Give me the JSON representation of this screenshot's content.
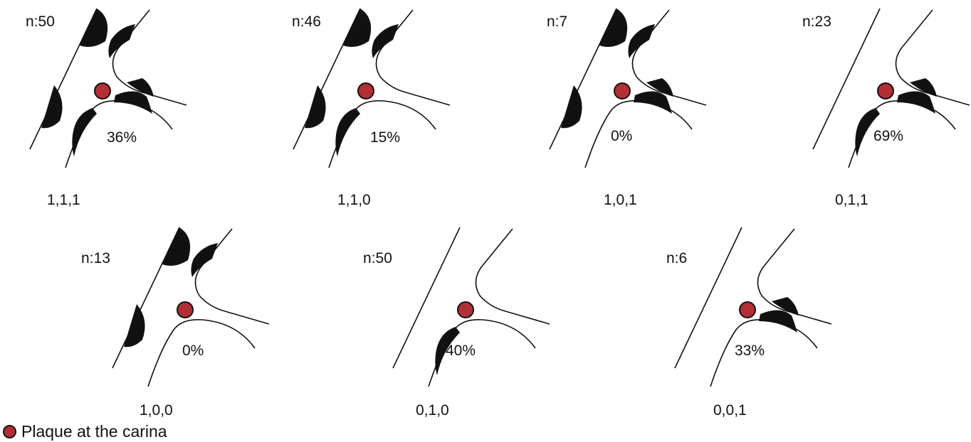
{
  "colors": {
    "plaque": "#b22f35",
    "ink": "#111111"
  },
  "legend": {
    "icon": "plaque-dot-icon",
    "label": "Plaque at the carina"
  },
  "panels": [
    {
      "n": "n:50",
      "percent": "36%",
      "code": "1,1,1",
      "plaques": {
        "side_wall": true,
        "flow_divider": true,
        "outer_branch": true
      }
    },
    {
      "n": "n:46",
      "percent": "15%",
      "code": "1,1,0",
      "plaques": {
        "side_wall": true,
        "flow_divider": true,
        "outer_branch": false
      }
    },
    {
      "n": "n:7",
      "percent": "0%",
      "code": "1,0,1",
      "plaques": {
        "side_wall": true,
        "flow_divider": false,
        "outer_branch": true
      }
    },
    {
      "n": "n:23",
      "percent": "69%",
      "code": "0,1,1",
      "plaques": {
        "side_wall": false,
        "flow_divider": true,
        "outer_branch": true
      }
    },
    {
      "n": "n:13",
      "percent": "0%",
      "code": "1,0,0",
      "plaques": {
        "side_wall": true,
        "flow_divider": false,
        "outer_branch": false
      }
    },
    {
      "n": "n:50",
      "percent": "40%",
      "code": "0,1,0",
      "plaques": {
        "side_wall": false,
        "flow_divider": true,
        "outer_branch": false
      }
    },
    {
      "n": "n:6",
      "percent": "33%",
      "code": "0,0,1",
      "plaques": {
        "side_wall": false,
        "flow_divider": false,
        "outer_branch": true
      }
    }
  ]
}
